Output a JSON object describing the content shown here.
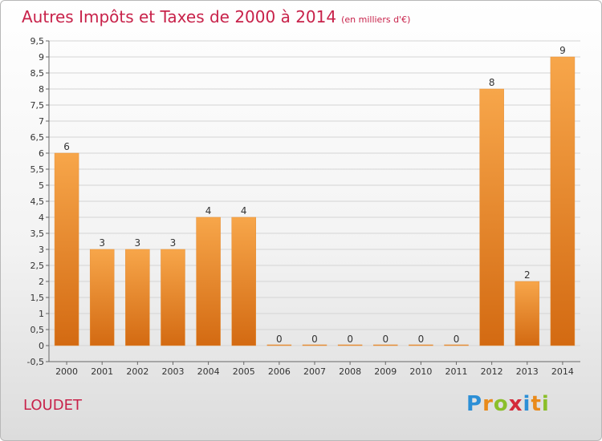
{
  "header": {
    "title": "Autres Impôts et Taxes de 2000 à 2014",
    "subtitle": "(en milliers d'€)"
  },
  "footer": {
    "place": "LOUDET",
    "logo_letters": [
      {
        "char": "P",
        "color": "#2c8fd6"
      },
      {
        "char": "r",
        "color": "#e98a1a"
      },
      {
        "char": "o",
        "color": "#8bbf2a"
      },
      {
        "char": "x",
        "color": "#d42a3a"
      },
      {
        "char": "i",
        "color": "#2c8fd6"
      },
      {
        "char": "t",
        "color": "#e98a1a"
      },
      {
        "char": "i",
        "color": "#8bbf2a"
      }
    ]
  },
  "chart_data": {
    "type": "bar",
    "title": "Autres Impôts et Taxes de 2000 à 2014",
    "subtitle": "(en milliers d'€)",
    "categories": [
      "2000",
      "2001",
      "2002",
      "2003",
      "2004",
      "2005",
      "2006",
      "2007",
      "2008",
      "2009",
      "2010",
      "2011",
      "2012",
      "2013",
      "2014"
    ],
    "values": [
      6,
      3,
      3,
      3,
      4,
      4,
      0,
      0,
      0,
      0,
      0,
      0,
      8,
      2,
      9
    ],
    "value_labels": [
      "6",
      "3",
      "3",
      "3",
      "4",
      "4",
      "0",
      "0",
      "0",
      "0",
      "0",
      "0",
      "8",
      "2",
      "9"
    ],
    "ylim": [
      -0.5,
      9.5
    ],
    "yticks": [
      "-0,5",
      "0",
      "0,5",
      "1",
      "1,5",
      "2",
      "2,5",
      "3",
      "3,5",
      "4",
      "4,5",
      "5",
      "5,5",
      "6",
      "6,5",
      "7",
      "7,5",
      "8",
      "8,5",
      "9",
      "9,5"
    ],
    "ytick_values": [
      -0.5,
      0,
      0.5,
      1,
      1.5,
      2,
      2.5,
      3,
      3.5,
      4,
      4.5,
      5,
      5.5,
      6,
      6.5,
      7,
      7.5,
      8,
      8.5,
      9,
      9.5
    ],
    "grid": true,
    "bar_color_top": "#f7a64a",
    "bar_color_bottom": "#d36a12"
  }
}
